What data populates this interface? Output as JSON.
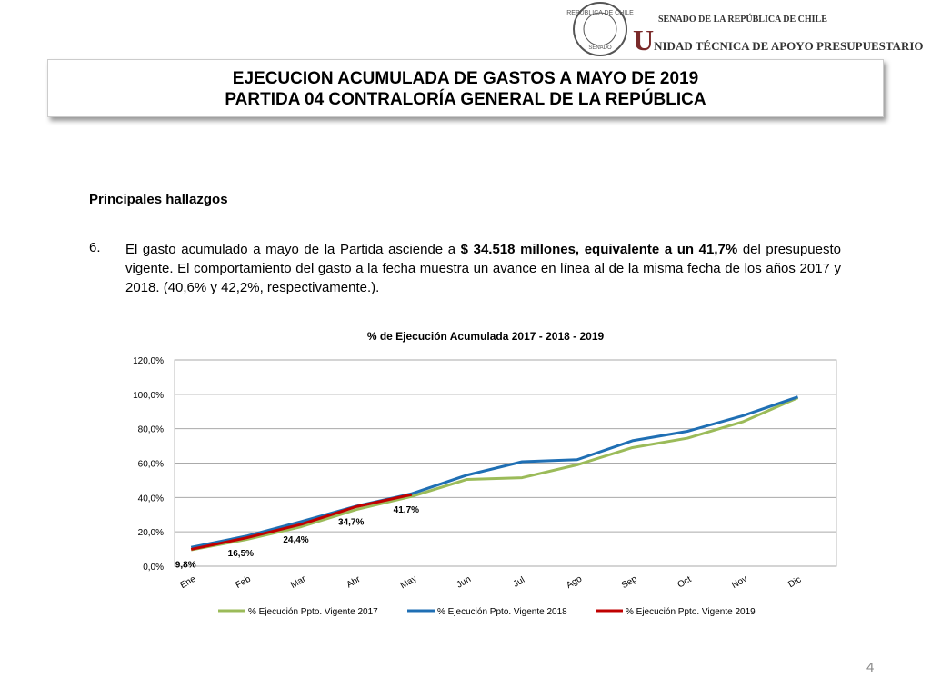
{
  "header": {
    "seal_top": "REPÚBLICA DE CHILE",
    "seal_bottom": "SENADO",
    "org_line1": "SENADO DE LA REPÚBLICA DE CHILE",
    "org_line2": "UNIDAD TÉCNICA DE APOYO PRESUPUESTARIO"
  },
  "title": {
    "line1": "EJECUCION ACUMULADA DE GASTOS A MAYO DE 2019",
    "line2": "PARTIDA 04 CONTRALORÍA GENERAL DE LA REPÚBLICA"
  },
  "section": "Principales hallazgos",
  "item": {
    "number": "6.",
    "parts": [
      "El gasto acumulado a mayo de la Partida asciende a ",
      "$ 34.518 millones, equivalente a un 41,7%",
      " del presupuesto vigente. El comportamiento del gasto a la fecha muestra un avance en línea al de la misma fecha de los años 2017 y 2018. (40,6% y 42,2%, respectivamente.)."
    ]
  },
  "page_number": "4",
  "chart_data": {
    "type": "line",
    "title": "% de Ejecución Acumulada 2017 - 2018 - 2019",
    "categories": [
      "Ene",
      "Feb",
      "Mar",
      "Abr",
      "May",
      "Jun",
      "Jul",
      "Ago",
      "Sep",
      "Oct",
      "Nov",
      "Dic"
    ],
    "series": [
      {
        "name": "% Ejecución Ppto. Vigente 2017",
        "color": "#9bbb59",
        "values": [
          9.5,
          15.5,
          23,
          33,
          40.6,
          50.5,
          51.5,
          59,
          69,
          74.5,
          84,
          98
        ]
      },
      {
        "name": "% Ejecución Ppto. Vigente 2018",
        "color": "#1f6fb4",
        "values": [
          11,
          17.5,
          26,
          35,
          42.2,
          53,
          60.8,
          62,
          73,
          78.5,
          87.5,
          98.5
        ]
      },
      {
        "name": "% Ejecución Ppto. Vigente 2019",
        "color": "#c00000",
        "values": [
          9.8,
          16.5,
          24.4,
          34.7,
          41.7,
          null,
          null,
          null,
          null,
          null,
          null,
          null
        ],
        "value_labels": [
          "9,8%",
          "16,5%",
          "24,4%",
          "34,7%",
          "41,7%",
          null,
          null,
          null,
          null,
          null,
          null,
          null
        ]
      }
    ],
    "ylim": [
      0,
      120
    ],
    "yticks": [
      {
        "value": 0,
        "label": "0,0%"
      },
      {
        "value": 20,
        "label": "20,0%"
      },
      {
        "value": 40,
        "label": "40,0%"
      },
      {
        "value": 60,
        "label": "60,0%"
      },
      {
        "value": 80,
        "label": "80,0%"
      },
      {
        "value": 100,
        "label": "100,0%"
      },
      {
        "value": 120,
        "label": "120,0%"
      }
    ],
    "grid": true,
    "legend": "bottom"
  }
}
